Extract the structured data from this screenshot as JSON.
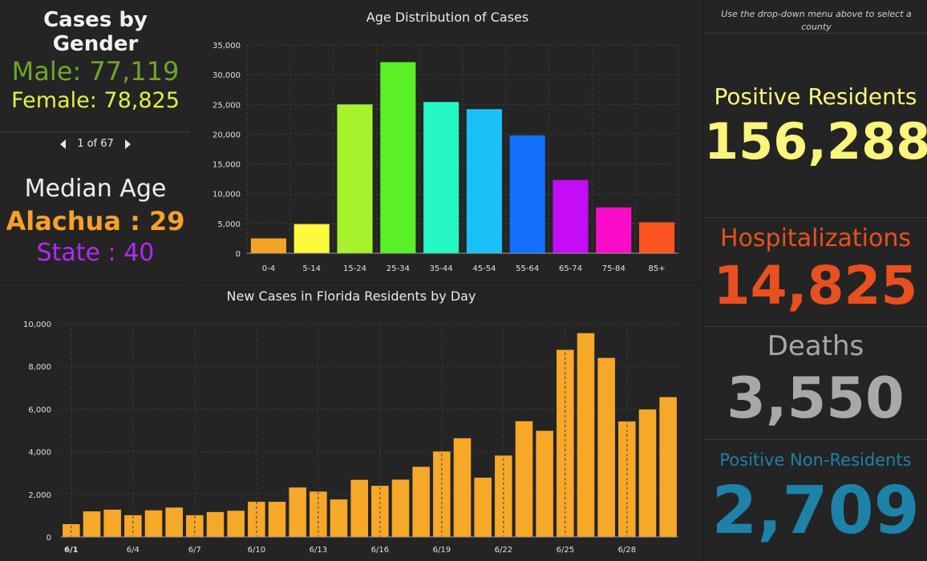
{
  "gender": {
    "title": "Cases by Gender",
    "male": "Male: 77,119",
    "female": "Female: 78,825"
  },
  "pager": {
    "text": "1 of 67"
  },
  "median": {
    "title": "Median Age",
    "county": "Alachua : 29",
    "state": "State : 40"
  },
  "stats": {
    "hint": "Use the drop-down menu above to select a county",
    "positive_label": "Positive Residents",
    "positive_value": "156,288",
    "hosp_label": "Hospitalizations",
    "hosp_value": "14,825",
    "deaths_label": "Deaths",
    "deaths_value": "3,550",
    "nonres_label": "Positive Non-Residents",
    "nonres_value": "2,709"
  },
  "colors": {
    "male": "#6fa52c",
    "female": "#e3f04a",
    "county": "#f6a129",
    "state": "#b12af2",
    "positive": "#fbf57c",
    "hosp": "#e8501f",
    "deaths": "#a8a8a8",
    "nonres": "#1d82a8",
    "daily_bar": "#f6a829"
  },
  "chart_data": [
    {
      "type": "bar",
      "title": "Age Distribution of Cases",
      "categories": [
        "0-4",
        "5-14",
        "15-24",
        "25-34",
        "35-44",
        "45-54",
        "55-64",
        "65-74",
        "75-84",
        "85+"
      ],
      "values": [
        2500,
        4900,
        25000,
        32100,
        25400,
        24200,
        19800,
        12300,
        7700,
        5200
      ],
      "colors": [
        "#f4a428",
        "#fcf83c",
        "#a6f32d",
        "#5af026",
        "#24f7c3",
        "#19c1f8",
        "#1270fb",
        "#c50cf6",
        "#f80cc9",
        "#f95320"
      ],
      "ylim": [
        0,
        35000
      ],
      "yticks": [
        0,
        5000,
        10000,
        15000,
        20000,
        25000,
        30000,
        35000
      ],
      "ytick_labels": [
        "0",
        "5,000",
        "10,000",
        "15,000",
        "20,000",
        "25,000",
        "30,000",
        "35,000"
      ],
      "grid": true
    },
    {
      "type": "bar",
      "title": "New Cases in Florida Residents by Day",
      "x": [
        "6/1",
        "6/2",
        "6/3",
        "6/4",
        "6/5",
        "6/6",
        "6/7",
        "6/8",
        "6/9",
        "6/10",
        "6/11",
        "6/12",
        "6/13",
        "6/14",
        "6/15",
        "6/16",
        "6/17",
        "6/18",
        "6/19",
        "6/20",
        "6/21",
        "6/22",
        "6/23",
        "6/24",
        "6/25",
        "6/26",
        "6/27",
        "6/28",
        "6/29",
        "6/30"
      ],
      "values": [
        600,
        1200,
        1280,
        1020,
        1250,
        1380,
        1020,
        1170,
        1230,
        1650,
        1650,
        2320,
        2130,
        1760,
        2680,
        2400,
        2690,
        3290,
        4010,
        4630,
        2780,
        3820,
        5430,
        4980,
        8780,
        9560,
        8400,
        5420,
        5980,
        6560
      ],
      "xtick_labels": [
        "6/1",
        "6/4",
        "6/7",
        "6/10",
        "6/13",
        "6/16",
        "6/19",
        "6/22",
        "6/25",
        "6/28"
      ],
      "ylim": [
        0,
        10000
      ],
      "yticks": [
        0,
        2000,
        4000,
        6000,
        8000,
        10000
      ],
      "ytick_labels": [
        "0",
        "2,000",
        "4,000",
        "6,000",
        "8,000",
        "10,000"
      ],
      "grid": true
    }
  ]
}
